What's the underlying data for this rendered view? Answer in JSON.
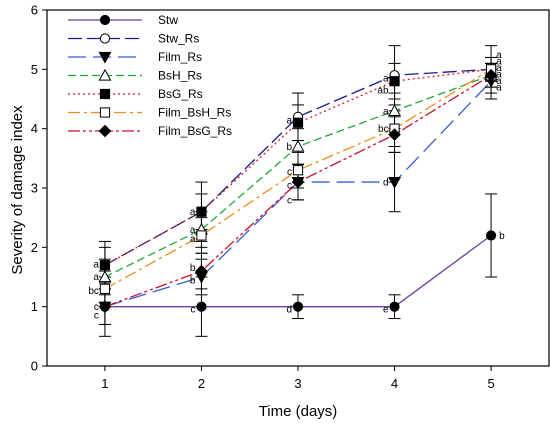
{
  "chart_data": {
    "type": "line",
    "xlabel": "Time (days)",
    "ylabel": "Severity of damage index",
    "xlim": [
      0.4,
      5.6
    ],
    "ylim": [
      0,
      6
    ],
    "x_ticks": [
      1,
      2,
      3,
      4,
      5
    ],
    "y_ticks": [
      0,
      1,
      2,
      3,
      4,
      5,
      6
    ],
    "legend_position": "top-left",
    "grid": false,
    "x": [
      1,
      2,
      3,
      4,
      5
    ],
    "series": [
      {
        "name": "Stw",
        "color": "#6a3fa0",
        "dash": "",
        "marker": "circle",
        "fill": "#000000",
        "values": [
          1.0,
          1.0,
          1.0,
          1.0,
          2.2
        ],
        "errors": [
          0.5,
          0.5,
          0.2,
          0.2,
          0.7
        ]
      },
      {
        "name": "Stw_Rs",
        "color": "#1a1a8c",
        "dash": "14,5",
        "marker": "circle",
        "fill": "#ffffff",
        "values": [
          1.7,
          2.6,
          4.2,
          4.9,
          5.0
        ],
        "errors": [
          0.4,
          0.5,
          0.4,
          0.5,
          0.4
        ]
      },
      {
        "name": "Film_Rs",
        "color": "#3b5bd8",
        "dash": "18,7",
        "marker": "triangle-down",
        "fill": "#000000",
        "values": [
          1.0,
          1.5,
          3.1,
          3.1,
          4.8
        ],
        "errors": [
          0.3,
          0.3,
          0.3,
          0.5,
          0.3
        ]
      },
      {
        "name": "BsH_Rs",
        "color": "#22a83a",
        "dash": "8,4",
        "marker": "triangle-up",
        "fill": "#ffffff",
        "values": [
          1.5,
          2.3,
          3.7,
          4.3,
          4.9
        ],
        "errors": [
          0.3,
          0.3,
          0.3,
          0.3,
          0.2
        ]
      },
      {
        "name": "BsG_Rs",
        "color": "#d42020",
        "dash": "2,3",
        "marker": "square",
        "fill": "#000000",
        "values": [
          1.7,
          2.6,
          4.1,
          4.8,
          5.0
        ],
        "errors": [
          0.3,
          0.3,
          0.3,
          0.3,
          0.2
        ]
      },
      {
        "name": "Film_BsH_Rs",
        "color": "#f08a1c",
        "dash": "12,4,3,4",
        "marker": "square",
        "fill": "#ffffff",
        "values": [
          1.3,
          2.2,
          3.3,
          4.0,
          5.0
        ],
        "errors": [
          0.3,
          0.3,
          0.3,
          0.3,
          0.2
        ]
      },
      {
        "name": "Film_BsG_Rs",
        "color": "#c8102e",
        "dash": "12,3,3,3,3,3",
        "marker": "diamond",
        "fill": "#000000",
        "values": [
          1.0,
          1.6,
          3.1,
          3.9,
          4.9
        ],
        "errors": [
          0.3,
          0.3,
          0.3,
          0.3,
          0.2
        ]
      }
    ],
    "annotations": [
      {
        "x": 1,
        "y": 1.72,
        "text": "a"
      },
      {
        "x": 1,
        "y": 1.51,
        "text": "a"
      },
      {
        "x": 1,
        "y": 1.27,
        "text": "bc"
      },
      {
        "x": 1,
        "y": 1.0,
        "text": "c"
      },
      {
        "x": 1,
        "y": 0.86,
        "text": "c"
      },
      {
        "x": 2,
        "y": 2.6,
        "text": "a"
      },
      {
        "x": 2,
        "y": 2.3,
        "text": "a"
      },
      {
        "x": 2,
        "y": 2.15,
        "text": "a"
      },
      {
        "x": 2,
        "y": 1.66,
        "text": "b"
      },
      {
        "x": 2,
        "y": 1.45,
        "text": "b"
      },
      {
        "x": 2,
        "y": 0.96,
        "text": "c"
      },
      {
        "x": 3,
        "y": 4.15,
        "text": "a"
      },
      {
        "x": 3,
        "y": 3.7,
        "text": "b"
      },
      {
        "x": 3,
        "y": 3.28,
        "text": "c"
      },
      {
        "x": 3,
        "y": 3.05,
        "text": "c"
      },
      {
        "x": 3,
        "y": 2.8,
        "text": "c"
      },
      {
        "x": 3,
        "y": 0.96,
        "text": "d"
      },
      {
        "x": 4,
        "y": 4.85,
        "text": "a"
      },
      {
        "x": 4,
        "y": 4.65,
        "text": "ab"
      },
      {
        "x": 4,
        "y": 4.3,
        "text": "a"
      },
      {
        "x": 4,
        "y": 4.0,
        "text": "bc"
      },
      {
        "x": 4,
        "y": 3.1,
        "text": "d"
      },
      {
        "x": 4,
        "y": 0.96,
        "text": "e"
      },
      {
        "x": 5,
        "y": 2.2,
        "text": "b"
      }
    ],
    "right_annotations": {
      "x": 5,
      "y_start": 5.25,
      "step": -0.11,
      "texts": [
        "a",
        "a",
        "a",
        "a",
        "a",
        "a"
      ]
    }
  }
}
